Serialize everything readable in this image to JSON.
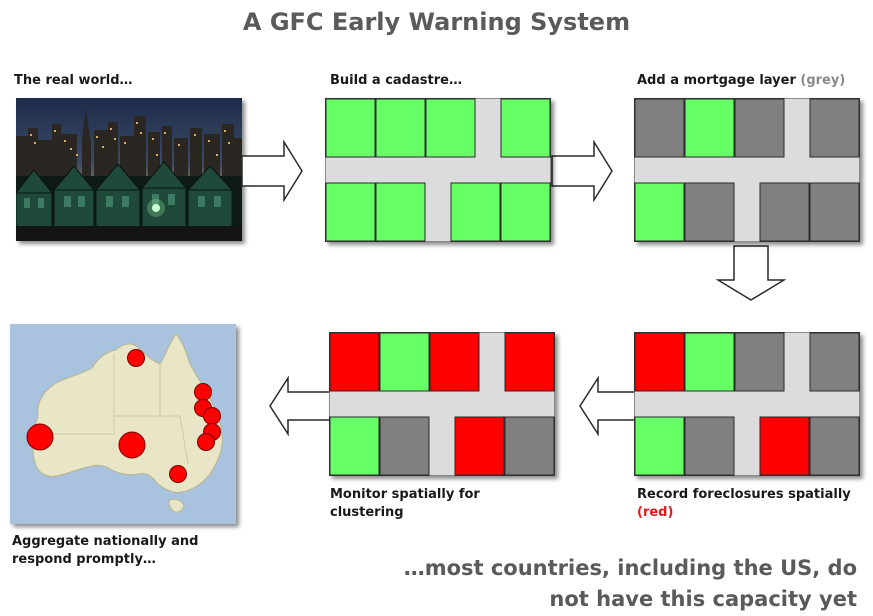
{
  "title": "A GFC Early Warning System",
  "steps": {
    "real_world": {
      "label": "The real world…"
    },
    "cadastre": {
      "label": "Build a cadastre…"
    },
    "mortgage": {
      "label": "Add a mortgage layer",
      "note": "(grey)"
    },
    "foreclosures": {
      "label_line1": "Record foreclosures spatially",
      "note": "(red)"
    },
    "monitor": {
      "label_line1": "Monitor spatially for",
      "label_line2": "clustering"
    },
    "aggregate": {
      "label_line1": "Aggregate nationally and",
      "label_line2": "respond promptly…"
    }
  },
  "footer": {
    "line1": "…most countries, including the US, do",
    "line2": "not have this capacity yet"
  },
  "colors": {
    "green": "#66ff66",
    "grey": "#808080",
    "red": "#ff0000",
    "road": "#dcdcdc",
    "title": "#5a5a5a"
  },
  "grids": {
    "cadastre": [
      "green",
      "green",
      "green",
      "green",
      "green",
      "green",
      "green",
      "green"
    ],
    "mortgage": [
      "grey",
      "green",
      "grey",
      "grey",
      "green",
      "grey",
      "grey",
      "grey"
    ],
    "foreclosures": [
      "red",
      "green",
      "grey",
      "grey",
      "green",
      "grey",
      "red",
      "grey"
    ],
    "monitor": [
      "red",
      "green",
      "red",
      "red",
      "green",
      "grey",
      "red",
      "grey"
    ]
  },
  "map": {
    "icon": "australia-map",
    "markers": [
      {
        "name": "north-queensland",
        "size": "small"
      },
      {
        "name": "central-queensland",
        "size": "small"
      },
      {
        "name": "brisbane-north",
        "size": "small"
      },
      {
        "name": "brisbane",
        "size": "small"
      },
      {
        "name": "gold-coast",
        "size": "small"
      },
      {
        "name": "sydney-region",
        "size": "small"
      },
      {
        "name": "perth",
        "size": "large"
      },
      {
        "name": "adelaide",
        "size": "large"
      },
      {
        "name": "melbourne",
        "size": "small"
      }
    ]
  }
}
